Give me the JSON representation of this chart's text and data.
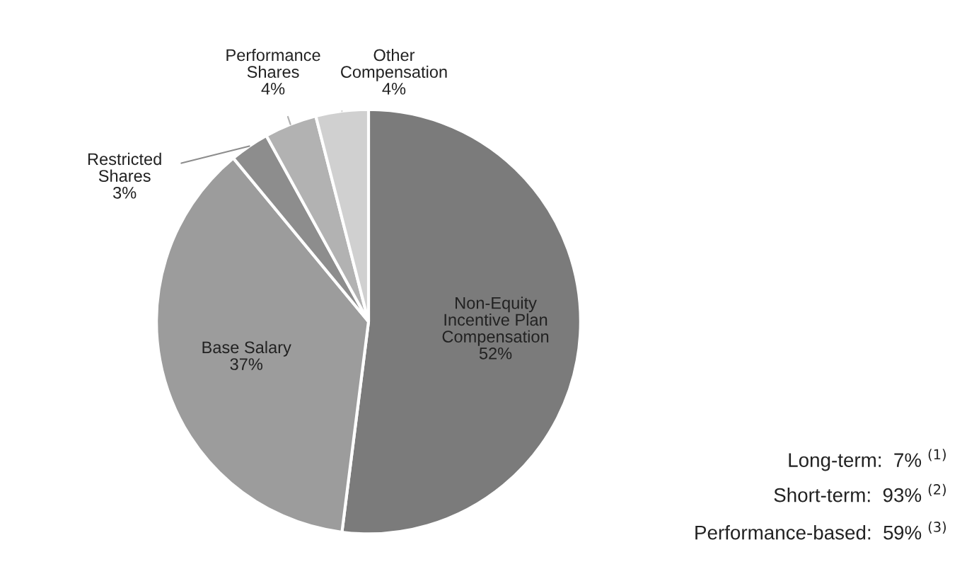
{
  "chart_data": {
    "type": "pie",
    "categories": [
      "Non-Equity\nIncentive Plan\nCompensation",
      "Base Salary",
      "Restricted\nShares",
      "Performance\nShares",
      "Other\nCompensation"
    ],
    "values": [
      52,
      37,
      3,
      4,
      4
    ],
    "colors": [
      "#7b7b7b",
      "#9c9c9c",
      "#8d8d8d",
      "#b2b2b2",
      "#d0d0d0"
    ],
    "value_labels": [
      "52%",
      "37%",
      "3%",
      "4%",
      "4%"
    ],
    "annotations": [
      "Long-term:  7% $^{(1)}$",
      "Short-term:  93% $^{(2)}$",
      "Performance-based:  59% $^{(3)}$"
    ]
  }
}
